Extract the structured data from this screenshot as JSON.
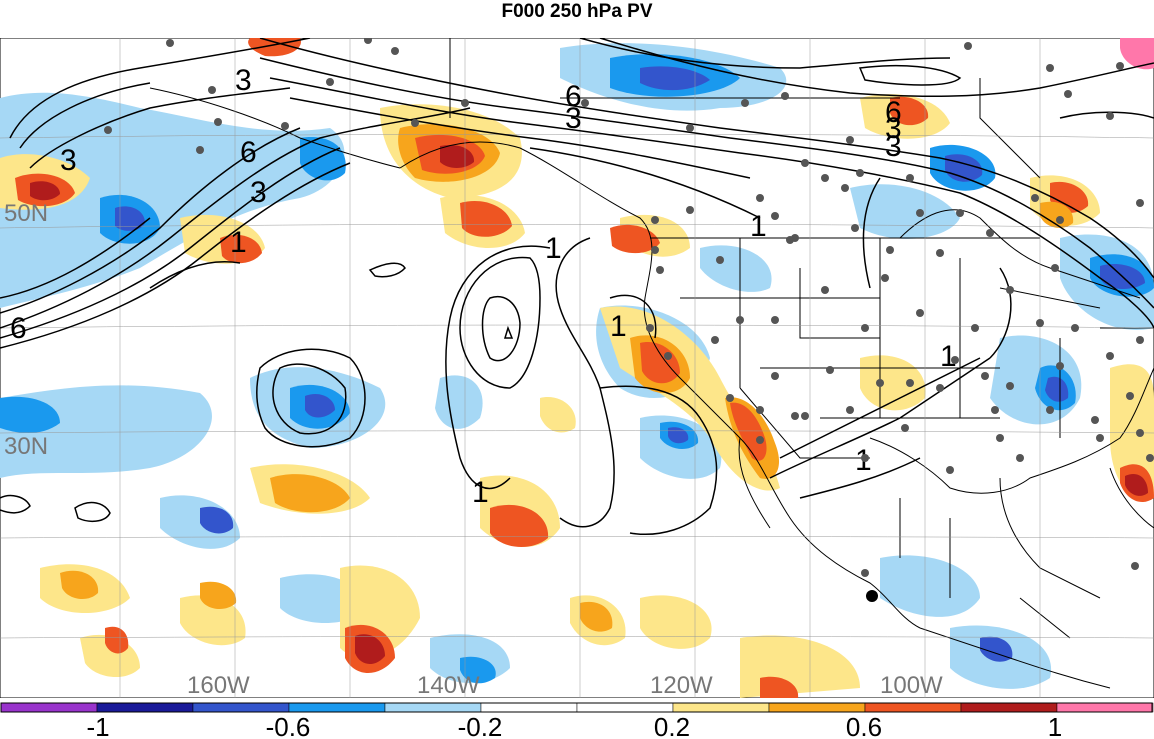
{
  "title": "F000 250 hPa PV",
  "lat_labels": [
    "50N",
    "30N"
  ],
  "lon_labels": [
    "160W",
    "140W",
    "120W",
    "100W"
  ],
  "contour_labels": [
    "3",
    "3",
    "6",
    "3",
    "3",
    "6",
    "6",
    "3",
    "3",
    "1",
    "6",
    "1",
    "1",
    "1",
    "1",
    "1",
    "1"
  ],
  "colorbar": {
    "colors": [
      "#9933cc",
      "#1a1a99",
      "#3355cc",
      "#1a99ee",
      "#a6d8f5",
      "#ffffff",
      "#ffffff",
      "#fde68a",
      "#f7a51c",
      "#ee5522",
      "#b01c1c",
      "#ff77aa"
    ],
    "tick_labels": [
      "-1",
      "-0.6",
      "-0.2",
      "0.2",
      "0.6",
      "1"
    ]
  },
  "colors": {
    "land_outline": "#000000",
    "contour": "#000000",
    "grid": "#999999",
    "station_dot": "#555555"
  }
}
